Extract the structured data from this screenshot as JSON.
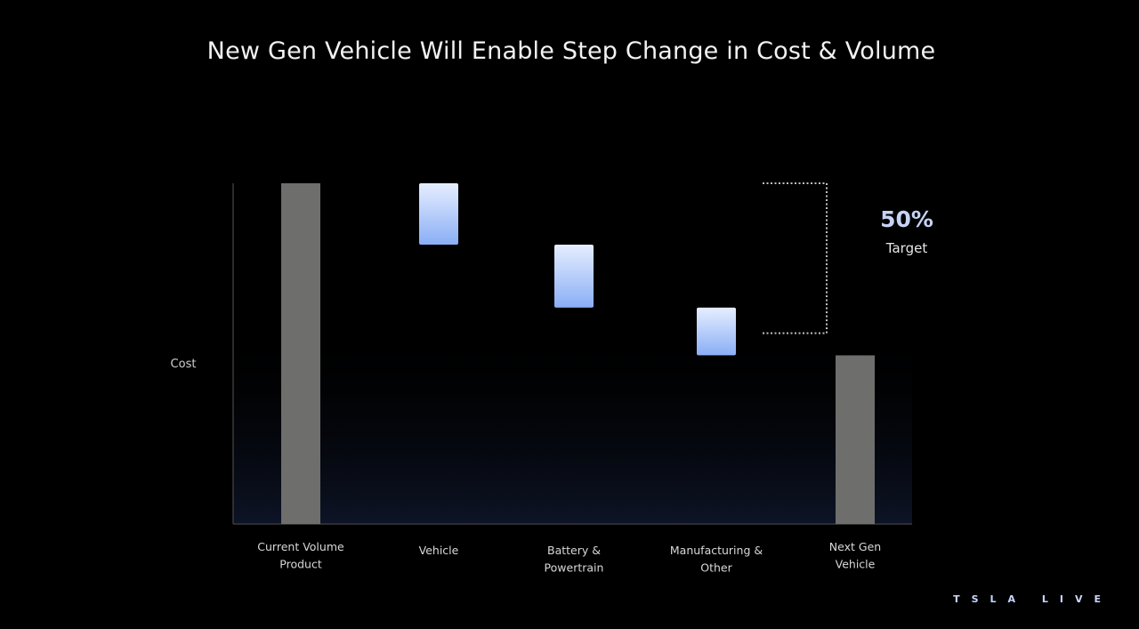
{
  "slide": {
    "title": "New Gen Vehicle Will Enable Step Change in Cost & Volume",
    "brand": "TSLA LIVE"
  },
  "chart_data": {
    "type": "bar",
    "subtype": "waterfall",
    "ylabel": "Cost",
    "ylim": [
      0,
      100
    ],
    "categories": [
      [
        "Current Volume",
        "Product"
      ],
      [
        "Vehicle"
      ],
      [
        "Battery &",
        "Powertrain"
      ],
      [
        "Manufacturing &",
        "Other"
      ],
      [
        "Next Gen",
        "Vehicle"
      ]
    ],
    "bars": [
      {
        "kind": "total",
        "start": 0,
        "end": 100
      },
      {
        "kind": "reduction",
        "start": 100,
        "end": 82
      },
      {
        "kind": "reduction",
        "start": 82,
        "end": 63.5
      },
      {
        "kind": "reduction",
        "start": 63.5,
        "end": 49.5
      },
      {
        "kind": "total",
        "start": 0,
        "end": 49.5
      }
    ],
    "annotation": {
      "value": "50%",
      "label": "Target",
      "from": 100,
      "to": 56
    },
    "colors": {
      "total_bar": "#6e6e6c",
      "reduction_top": "#e6eeff",
      "reduction_bottom": "#8aaef5",
      "axis": "#3a3a3a",
      "bracket": "#bfbfbf",
      "annotation_value": "#c7d3f5"
    }
  }
}
